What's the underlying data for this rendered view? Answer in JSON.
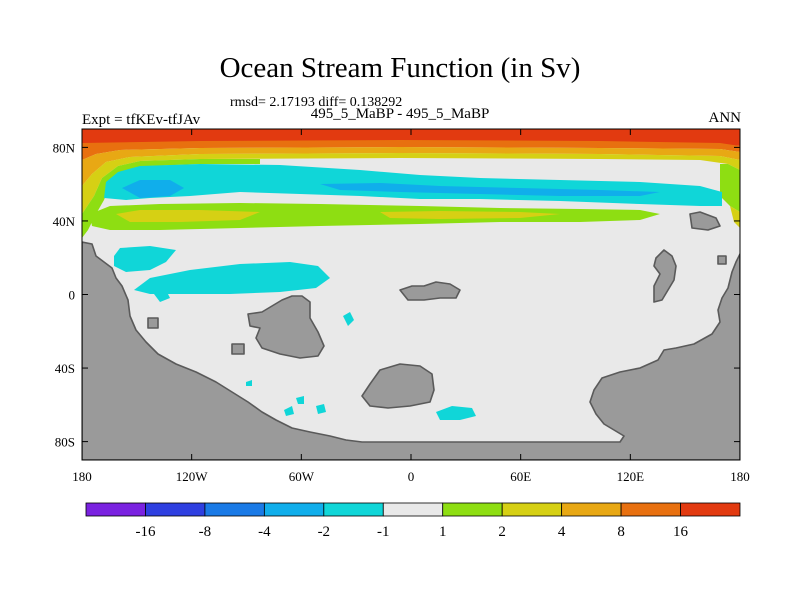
{
  "chart_data": {
    "type": "contour map",
    "title": "Ocean Stream Function (in Sv)",
    "stats": "rmsd= 2.17193 diff= 0.138292",
    "subtitle": "495_5_MaBP - 495_5_MaBP",
    "left_label": "Expt = tfKEv-tfJAv",
    "right_label": "ANN",
    "xlim": [
      -180,
      180
    ],
    "ylim": [
      -90,
      90
    ],
    "x_ticks": [
      {
        "value": -180,
        "label": "180"
      },
      {
        "value": -120,
        "label": "120W"
      },
      {
        "value": -60,
        "label": "60W"
      },
      {
        "value": 0,
        "label": "0"
      },
      {
        "value": 60,
        "label": "60E"
      },
      {
        "value": 120,
        "label": "120E"
      },
      {
        "value": 180,
        "label": "180"
      }
    ],
    "y_ticks": [
      {
        "value": 80,
        "label": "80N"
      },
      {
        "value": 40,
        "label": "40N"
      },
      {
        "value": 0,
        "label": "0"
      },
      {
        "value": -40,
        "label": "40S"
      },
      {
        "value": -80,
        "label": "80S"
      }
    ],
    "colorbar": {
      "labels": [
        "-16",
        "-8",
        "-4",
        "-2",
        "-1",
        "1",
        "2",
        "4",
        "8",
        "16"
      ],
      "colors": [
        "#7a22e0",
        "#2e3fe0",
        "#1a7ae6",
        "#10aeeb",
        "#10d6d8",
        "#e9e9e9",
        "#8ede12",
        "#d6d014",
        "#e8a814",
        "#e8700f",
        "#e23a10"
      ]
    },
    "colors": {
      "land": "#9a9a9a",
      "ocean_neutral": "#e9e9e9",
      "cyan": "#10d6d8",
      "green": "#8ede12",
      "yellow": "#d6d014",
      "orange": "#e8a814",
      "dark_orange": "#e8700f",
      "red": "#e23a10"
    }
  }
}
